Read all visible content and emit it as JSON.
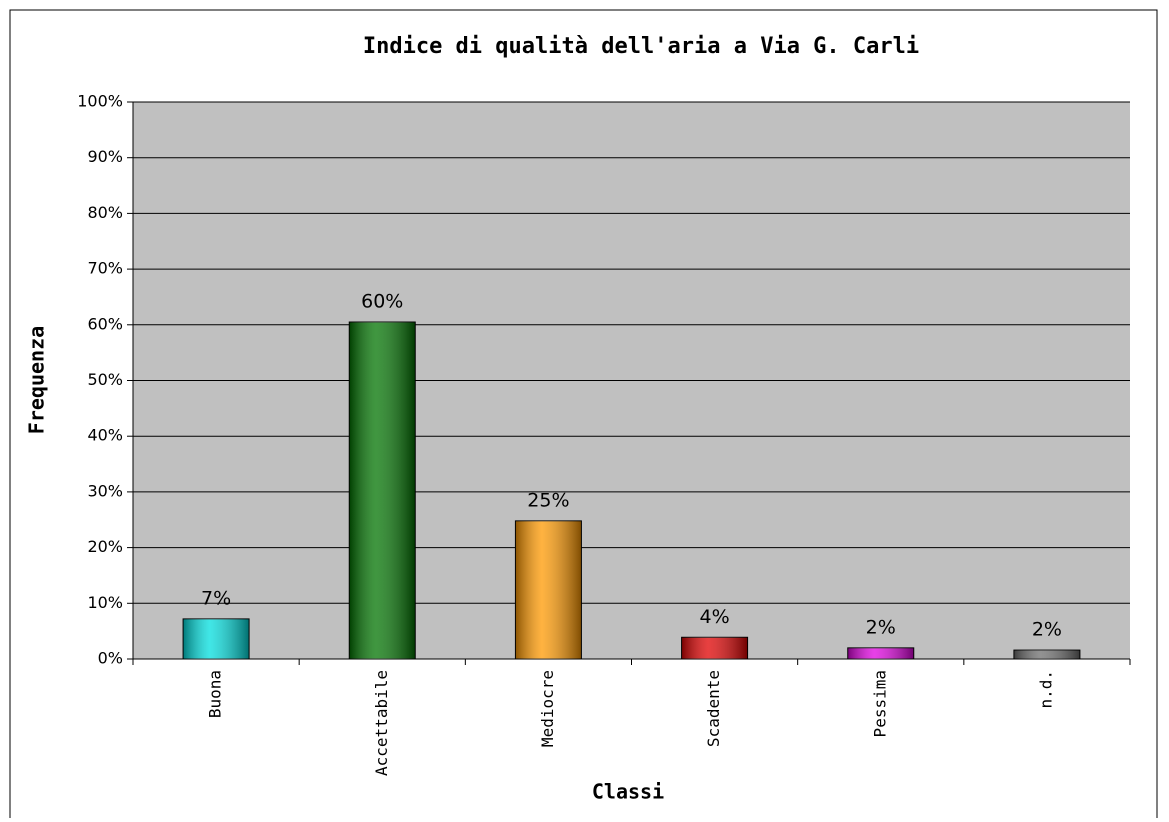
{
  "chart_data": {
    "type": "bar",
    "title": "Indice di qualità dell'aria a Via G. Carli",
    "x_label": "Classi",
    "y_label": "Frequenza",
    "categories": [
      "Buona",
      "Accettabile",
      "Mediocre",
      "Scadente",
      "Pessima",
      "n.d."
    ],
    "values": [
      7.2,
      60.5,
      24.8,
      3.9,
      2.0,
      1.6
    ],
    "value_labels": [
      "7%",
      "60%",
      "25%",
      "4%",
      "2%",
      "2%"
    ],
    "colors": [
      "#00dede",
      "#007400",
      "#ff9900",
      "#e00000",
      "#e000e0",
      "#6e6e6e"
    ],
    "ylim": [
      0,
      100
    ],
    "yticks": [
      {
        "value": 0,
        "label": "0%"
      },
      {
        "value": 10,
        "label": "10%"
      },
      {
        "value": 20,
        "label": "20%"
      },
      {
        "value": 30,
        "label": "30%"
      },
      {
        "value": 40,
        "label": "40%"
      },
      {
        "value": 50,
        "label": "50%"
      },
      {
        "value": 60,
        "label": "60%"
      },
      {
        "value": 70,
        "label": "70%"
      },
      {
        "value": 80,
        "label": "80%"
      },
      {
        "value": 90,
        "label": "90%"
      },
      {
        "value": 100,
        "label": "100%"
      }
    ],
    "grid": true
  }
}
